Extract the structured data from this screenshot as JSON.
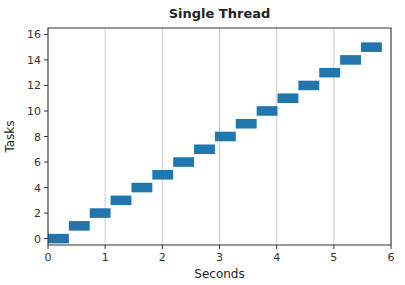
{
  "chart_data": {
    "type": "gantt",
    "orientation": "horizontal",
    "title": "Single Thread",
    "x_label": "Seconds",
    "y_label": "Tasks",
    "y": [
      0,
      1,
      2,
      3,
      4,
      5,
      6,
      7,
      8,
      9,
      10,
      11,
      12,
      13,
      14,
      15
    ],
    "starts": [
      0,
      0.365,
      0.73,
      1.095,
      1.46,
      1.825,
      2.19,
      2.555,
      2.92,
      3.285,
      3.65,
      4.015,
      4.38,
      4.745,
      5.11,
      5.475
    ],
    "ends": [
      0.365,
      0.73,
      1.095,
      1.46,
      1.825,
      2.19,
      2.555,
      2.92,
      3.285,
      3.65,
      4.015,
      4.38,
      4.745,
      5.11,
      5.475,
      5.84
    ],
    "color": "#2176ae",
    "xlim": [
      0,
      6
    ],
    "xticks": [
      0,
      1,
      2,
      3,
      4,
      5,
      6
    ],
    "ylim": [
      -0.5,
      16.5
    ],
    "yticks": [
      0,
      2,
      4,
      6,
      8,
      10,
      12,
      14,
      16
    ],
    "grid": "x"
  }
}
